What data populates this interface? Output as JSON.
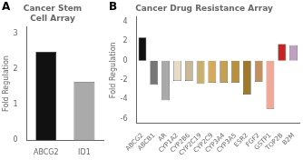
{
  "chart_data": [
    {
      "type": "bar",
      "title": "Cancer Stem\nCell Array",
      "annotations": [
        "A"
      ],
      "categories": [
        "ABCG2",
        "ID1"
      ],
      "values": [
        2.5,
        1.65
      ],
      "colors": [
        "#111111",
        "#aaaaaa"
      ],
      "ylabel": "Fold Regulation",
      "ylim": [
        0,
        3.2
      ],
      "yticks": [
        0,
        1,
        2,
        3
      ],
      "grid": false
    },
    {
      "type": "bar",
      "title": "Cancer Drug Resistance Array",
      "annotations": [
        "B"
      ],
      "categories": [
        "ABCG2",
        "ABCB1",
        "AR",
        "CYP1A2",
        "CYP2B6",
        "CYP2C19",
        "CYP2C9",
        "CYP3A4",
        "CYP3A5",
        "ESR2",
        "FGF2",
        "GSTP1",
        "TOP2B",
        "B2M"
      ],
      "values": [
        2.4,
        -2.5,
        -4.1,
        -2.1,
        -2.1,
        -2.4,
        -2.3,
        -2.3,
        -2.3,
        -3.5,
        -2.2,
        -5.0,
        1.7,
        1.6
      ],
      "colors": [
        "#111111",
        "#777777",
        "#aaaaaa",
        "#e8dcc8",
        "#c8b898",
        "#c8b070",
        "#d4aa60",
        "#c8a050",
        "#b89040",
        "#a07828",
        "#c09060",
        "#f0a898",
        "#cc2222",
        "#c0a0c0"
      ],
      "ylabel": "Fold Regulation",
      "ylim": [
        -6.5,
        4.5
      ],
      "yticks": [
        -6,
        -4,
        -2,
        0,
        2,
        4
      ],
      "grid": false
    }
  ]
}
